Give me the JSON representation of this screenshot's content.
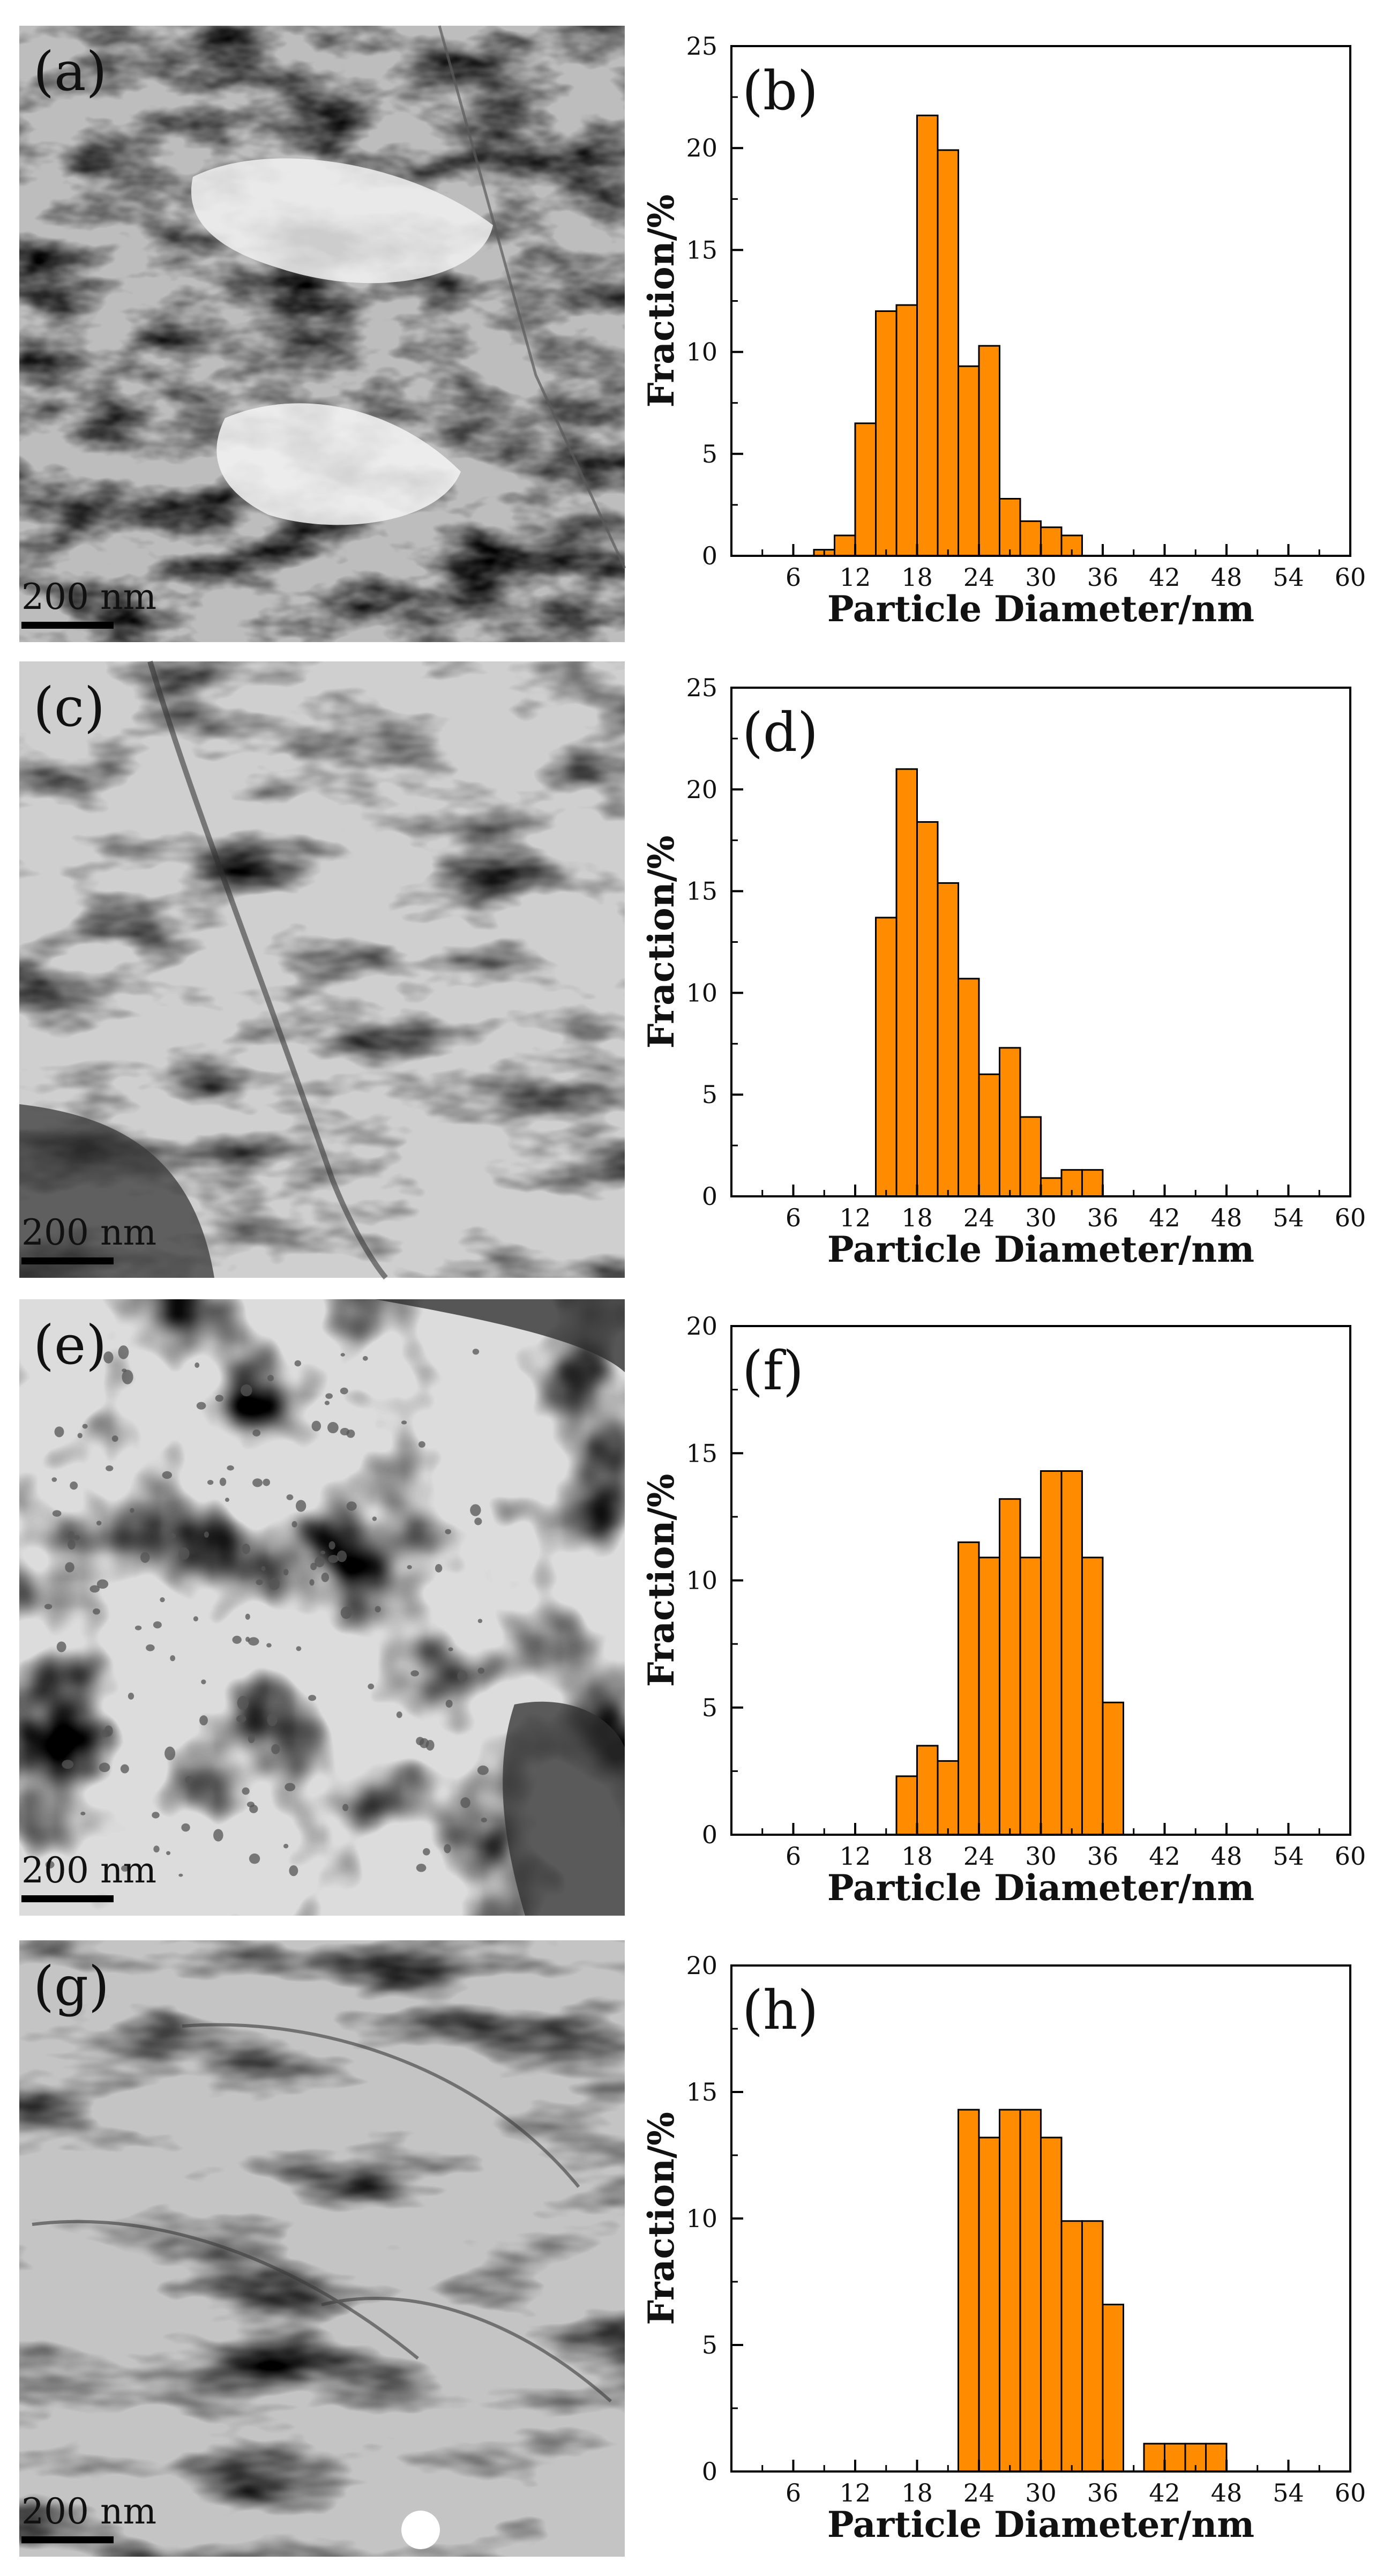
{
  "micrographs": [
    {
      "label": "(a)",
      "scale_bar": "200 nm"
    },
    {
      "label": "(c)",
      "scale_bar": "200 nm"
    },
    {
      "label": "(e)",
      "scale_bar": "200 nm"
    },
    {
      "label": "(g)",
      "scale_bar": "200 nm"
    }
  ],
  "colors": {
    "bar_fill": "#FF8C00",
    "bar_edge": "#000000"
  },
  "chart_data": [
    {
      "type": "bar",
      "title": "(b)",
      "xlabel": "Particle Diameter/nm",
      "ylabel": "Fraction/%",
      "xlim": [
        0,
        60
      ],
      "ylim": [
        0,
        25
      ],
      "xticks": [
        6,
        12,
        18,
        24,
        30,
        36,
        42,
        48,
        54,
        60
      ],
      "yticks": [
        0,
        5,
        10,
        15,
        20,
        25
      ],
      "bin_width": 2,
      "x": [
        9,
        11,
        13,
        15,
        17,
        19,
        21,
        23,
        25,
        27,
        29,
        31,
        33
      ],
      "values": [
        0.3,
        1.0,
        6.5,
        12.0,
        12.3,
        21.6,
        19.9,
        9.3,
        10.3,
        2.8,
        1.7,
        1.4,
        1.0
      ]
    },
    {
      "type": "bar",
      "title": "(d)",
      "xlabel": "Particle Diameter/nm",
      "ylabel": "Fraction/%",
      "xlim": [
        0,
        60
      ],
      "ylim": [
        0,
        25
      ],
      "xticks": [
        6,
        12,
        18,
        24,
        30,
        36,
        42,
        48,
        54,
        60
      ],
      "yticks": [
        0,
        5,
        10,
        15,
        20,
        25
      ],
      "bin_width": 2,
      "x": [
        15,
        17,
        19,
        21,
        23,
        25,
        27,
        29,
        31,
        33,
        35
      ],
      "values": [
        13.7,
        21.0,
        18.4,
        15.4,
        10.7,
        6.0,
        7.3,
        3.9,
        0.9,
        1.3,
        1.3
      ]
    },
    {
      "type": "bar",
      "title": "(f)",
      "xlabel": "Particle Diameter/nm",
      "ylabel": "Fraction/%",
      "xlim": [
        0,
        60
      ],
      "ylim": [
        0,
        20
      ],
      "xticks": [
        6,
        12,
        18,
        24,
        30,
        36,
        42,
        48,
        54,
        60
      ],
      "yticks": [
        0,
        5,
        10,
        15,
        20
      ],
      "bin_width": 2,
      "x": [
        17,
        19,
        21,
        23,
        25,
        27,
        29,
        31,
        33,
        35,
        37
      ],
      "values": [
        2.3,
        3.5,
        2.9,
        11.5,
        10.9,
        13.2,
        10.9,
        14.3,
        14.3,
        10.9,
        5.2
      ]
    },
    {
      "type": "bar",
      "title": "(h)",
      "xlabel": "Particle Diameter/nm",
      "ylabel": "Fraction/%",
      "xlim": [
        0,
        60
      ],
      "ylim": [
        0,
        20
      ],
      "xticks": [
        6,
        12,
        18,
        24,
        30,
        36,
        42,
        48,
        54,
        60
      ],
      "yticks": [
        0,
        5,
        10,
        15,
        20
      ],
      "bin_width": 2,
      "x": [
        23,
        25,
        27,
        29,
        31,
        33,
        35,
        37,
        41,
        43,
        45,
        47
      ],
      "values": [
        14.3,
        13.2,
        14.3,
        14.3,
        13.2,
        9.9,
        9.9,
        6.6,
        1.1,
        1.1,
        1.1,
        1.1
      ]
    }
  ]
}
